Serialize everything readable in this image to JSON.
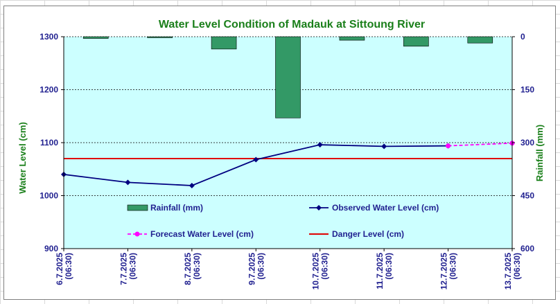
{
  "chart_data": {
    "type": "bar+line",
    "title": "Water Level Condition of Madauk at Sittoung River",
    "ylabel_left": "Water Level (cm)",
    "ylabel_right": "Rainfall (mm)",
    "y_left": {
      "min": 900,
      "max": 1300,
      "ticks": [
        900,
        1000,
        1100,
        1200,
        1300
      ]
    },
    "y_right": {
      "min": 0,
      "max": 600,
      "ticks": [
        0,
        150,
        300,
        450,
        600
      ],
      "reversed": true
    },
    "categories": [
      [
        "6.7.2025",
        "(06:30)"
      ],
      [
        "7.7.2025",
        "(06:30)"
      ],
      [
        "8.7.2025",
        "(06:30)"
      ],
      [
        "9.7.2025",
        "(06:30)"
      ],
      [
        "10.7.2025",
        "(06:30)"
      ],
      [
        "11.7.2025",
        "(06:30)"
      ],
      [
        "12.7.2025",
        "(06:30)"
      ],
      [
        "13.7.2025",
        "(06:30)"
      ]
    ],
    "rainfall": {
      "name": "Rainfall (mm)",
      "values": [
        5,
        3,
        35,
        230,
        10,
        27,
        18
      ],
      "color": "#339966"
    },
    "observed": {
      "name": "Observed Water Level (cm)",
      "values": [
        1040,
        1025,
        1019,
        1068,
        1096,
        1093,
        1094
      ],
      "color": "#000080"
    },
    "forecast": {
      "name": "Forecast Water Level (cm)",
      "start_index": 6,
      "values": [
        1094,
        1099
      ],
      "color": "#ff00ff"
    },
    "danger": {
      "name": "Danger Level (cm)",
      "value": 1070,
      "color": "#e00000"
    },
    "plot_background": "#ccffff",
    "gridlines": true,
    "legend": "inside-bottom"
  }
}
